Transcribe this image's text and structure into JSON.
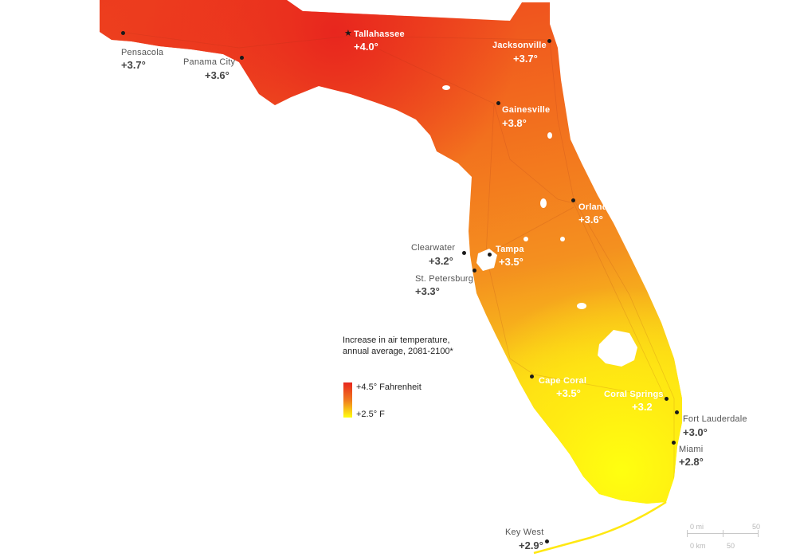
{
  "map": {
    "colors": {
      "high": "#e8261e",
      "mid": "#f07a1f",
      "low": "#ffff10",
      "water": "#ffffff",
      "roads": "#a0301a"
    }
  },
  "cities": [
    {
      "id": "pensacola",
      "name": "Pensacola",
      "value": "+3.7°"
    },
    {
      "id": "panama-city",
      "name": "Panama City",
      "value": "+3.6°"
    },
    {
      "id": "tallahassee",
      "name": "Tallahassee",
      "value": "+4.0°"
    },
    {
      "id": "jacksonville",
      "name": "Jacksonville",
      "value": "+3.7°"
    },
    {
      "id": "gainesville",
      "name": "Gainesville",
      "value": "+3.8°"
    },
    {
      "id": "orlando",
      "name": "Orlando",
      "value": "+3.6°"
    },
    {
      "id": "clearwater",
      "name": "Clearwater",
      "value": "+3.2°"
    },
    {
      "id": "tampa",
      "name": "Tampa",
      "value": "+3.5°"
    },
    {
      "id": "st-petersburg",
      "name": "St. Petersburg",
      "value": "+3.3°"
    },
    {
      "id": "cape-coral",
      "name": "Cape Coral",
      "value": "+3.5°"
    },
    {
      "id": "coral-springs",
      "name": "Coral Springs",
      "value": "+3.2"
    },
    {
      "id": "fort-lauderdale",
      "name": "Fort Lauderdale",
      "value": "+3.0°"
    },
    {
      "id": "miami",
      "name": "Miami",
      "value": "+2.8°"
    },
    {
      "id": "key-west",
      "name": "Key West",
      "value": "+2.9°"
    }
  ],
  "legend": {
    "title": "Increase in air temperature, annual average, 2081-2100*",
    "max_label": "+4.5° Fahrenheit",
    "min_label": "+2.5° F",
    "max_value": 4.5,
    "min_value": 2.5
  },
  "scale": {
    "mi_zero": "0 mi",
    "mi_end": "50",
    "km_zero": "0 km",
    "km_end": "50"
  }
}
